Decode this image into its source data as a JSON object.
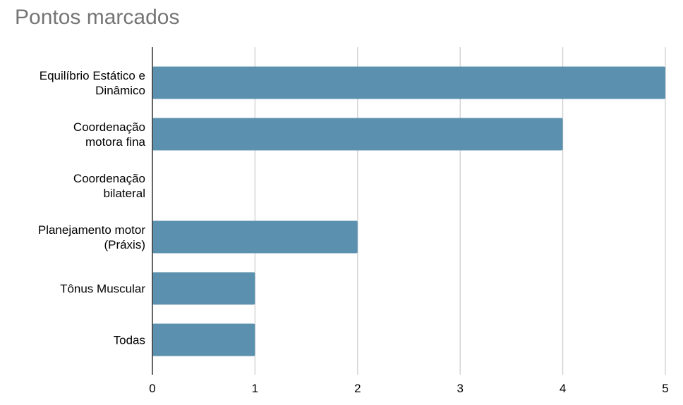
{
  "chart_data": {
    "type": "bar",
    "orientation": "horizontal",
    "title": "Pontos marcados",
    "xlabel": "",
    "ylabel": "",
    "categories": [
      [
        "Equilíbrio Estático e",
        "Dinâmico"
      ],
      [
        "Coordenação",
        "motora fina"
      ],
      [
        "Coordenação",
        "bilateral"
      ],
      [
        "Planejamento motor",
        "(Práxis)"
      ],
      [
        "Tônus Muscular"
      ],
      [
        "Todas"
      ]
    ],
    "values": [
      5,
      4,
      0,
      2,
      1,
      1
    ],
    "xlim": [
      0,
      5
    ],
    "xticks": [
      "0",
      "1",
      "2",
      "3",
      "4",
      "5"
    ],
    "grid": true,
    "legend": "none",
    "bar_color": "#5b91ae",
    "grid_color": "#cccccc",
    "axis_color": "#333333"
  }
}
